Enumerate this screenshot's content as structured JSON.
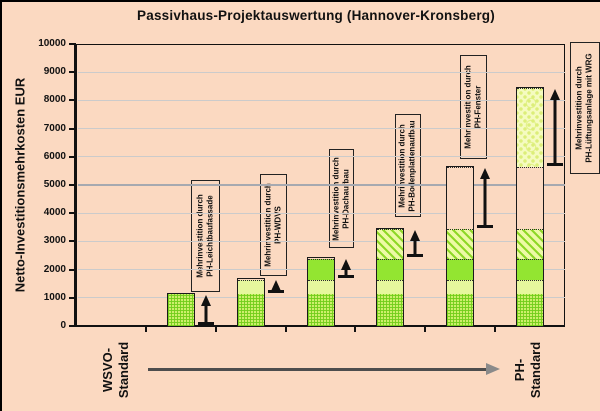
{
  "title": "Passivhaus-Projektauswertung (Hannover-Kronsberg)",
  "y_axis": {
    "label": "Netto-Investitionsmehrkosten EUR",
    "tick_labels": [
      "0",
      "1000",
      "2000",
      "3000",
      "4000",
      "5000",
      "6000",
      "7000",
      "8000",
      "9000",
      "10000"
    ]
  },
  "x_axis": {
    "left_label": [
      "WSVO-",
      "Standard"
    ],
    "right_label": [
      "PH-",
      "Standard"
    ]
  },
  "annotations": [
    {
      "line1": "Mehrinvestition durch",
      "line2": "PH-Leichtbaufassade"
    },
    {
      "line1": "Mehrinvestition durch",
      "line2": "PH-WDVS"
    },
    {
      "line1": "Mehrinvestition durch",
      "line2": "PH-Dachaufbau"
    },
    {
      "line1": "Mehrinvestition durch",
      "line2": "PH-Bodenplattenaufbau"
    },
    {
      "line1": "Mehrinvestition durch",
      "line2": "PH-Fenster"
    },
    {
      "line1": "Mehrinvestition durch",
      "line2": "PH-Lüftungsanlage mit WRG"
    }
  ],
  "colors": {
    "background": "#fbd9c1",
    "axis": "#111111",
    "gridline": "#cbcbcb",
    "gridline_5000": "#a6a9b0",
    "segment_green_hatch": "#cdef6b",
    "segment_light_green": "#e6f79d",
    "segment_solid_green": "#93e531",
    "segment_diagonal": "#edfaa6",
    "segment_unfilled": "#fbd9c1",
    "segment_dotted": "#f5fbc0",
    "bottom_arrow": "#4d4d4d",
    "bottom_arrow_head": "#8a8a8a"
  },
  "chart_data": {
    "type": "bar",
    "stacked": true,
    "title": "Passivhaus-Projektauswertung (Hannover-Kronsberg)",
    "xlabel": "",
    "ylabel": "Netto-Investitionsmehrkosten EUR",
    "ylim": [
      0,
      10000
    ],
    "y_tick_step": 1000,
    "grid": true,
    "legend": false,
    "x_endpoint_labels": [
      "WSVO-Standard",
      "PH-Standard"
    ],
    "layout_note": "Six cumulative stacked bars between WSVO-Standard and PH-Standard; each bar adds one component; vertical arrows mark each increment",
    "components": [
      {
        "name": "PH-Leichtbaufassade",
        "value": 1150
      },
      {
        "name": "PH-WDVS",
        "value": 500
      },
      {
        "name": "PH-Dachaufbau",
        "value": 750
      },
      {
        "name": "PH-Bodenplattenaufbau",
        "value": 1050
      },
      {
        "name": "PH-Fenster",
        "value": 2200
      },
      {
        "name": "PH-Lüftungsanlage mit WRG",
        "value": 2800
      }
    ],
    "bar_totals": [
      1150,
      1650,
      2400,
      3450,
      5650,
      8450
    ]
  }
}
